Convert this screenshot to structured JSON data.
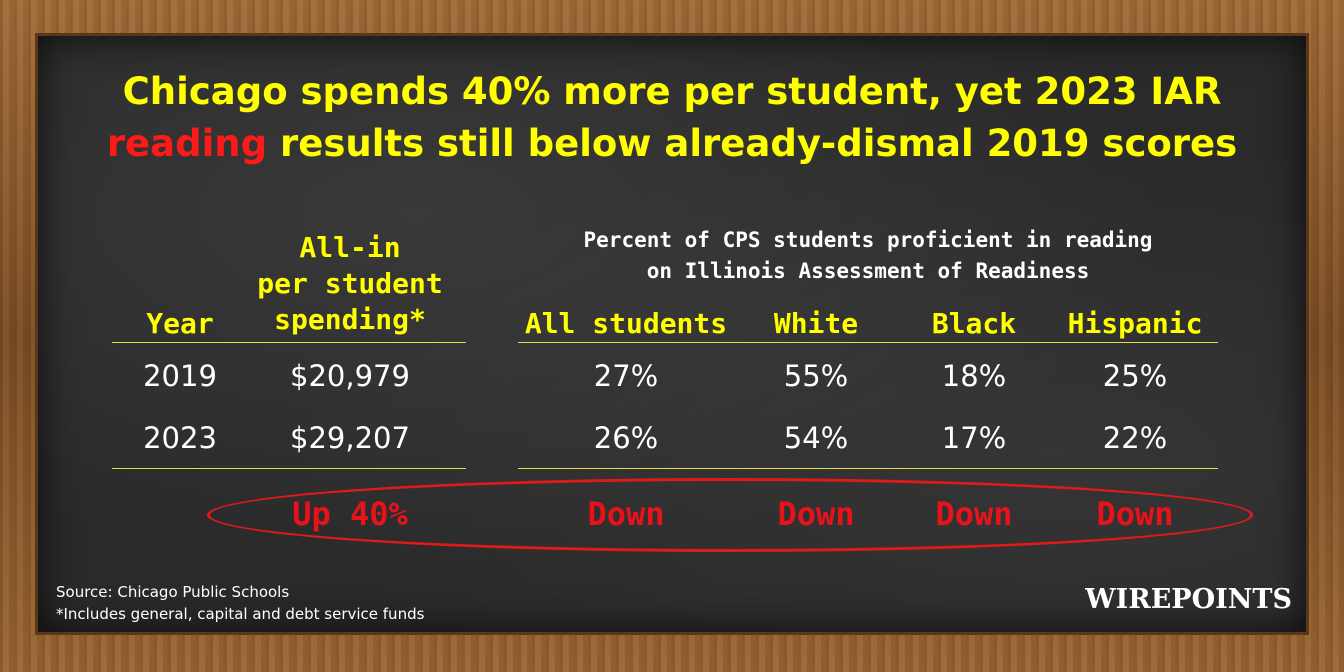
{
  "title": {
    "line1": "Chicago spends 40% more per student, yet 2023 IAR",
    "line2_highlight": "reading",
    "line2_rest": " results still below already-dismal 2019 scores"
  },
  "table": {
    "year_header": "Year",
    "spending_header_lines": [
      "All-in",
      "per student",
      "spending*"
    ],
    "proficiency_subheader_lines": [
      "Percent of CPS students proficient in reading",
      "on Illinois Assessment of Readiness"
    ],
    "group_headers": [
      "All students",
      "White",
      "Black",
      "Hispanic"
    ],
    "rows": [
      {
        "year": "2019",
        "spending": "$20,979",
        "values": [
          "27%",
          "55%",
          "18%",
          "25%"
        ]
      },
      {
        "year": "2023",
        "spending": "$29,207",
        "values": [
          "26%",
          "54%",
          "17%",
          "22%"
        ]
      }
    ],
    "change_spending": "Up 40%",
    "change_groups": [
      "Down",
      "Down",
      "Down",
      "Down"
    ]
  },
  "colors": {
    "title": "#ffff00",
    "highlight": "#ff1a1a",
    "header": "#ffff00",
    "change": "#e8121b",
    "board": "#2a2a2a"
  },
  "footer": {
    "source": "Source: Chicago Public Schools",
    "note": "*Includes general, capital and debt service funds"
  },
  "brand": "WIREPOINTS"
}
